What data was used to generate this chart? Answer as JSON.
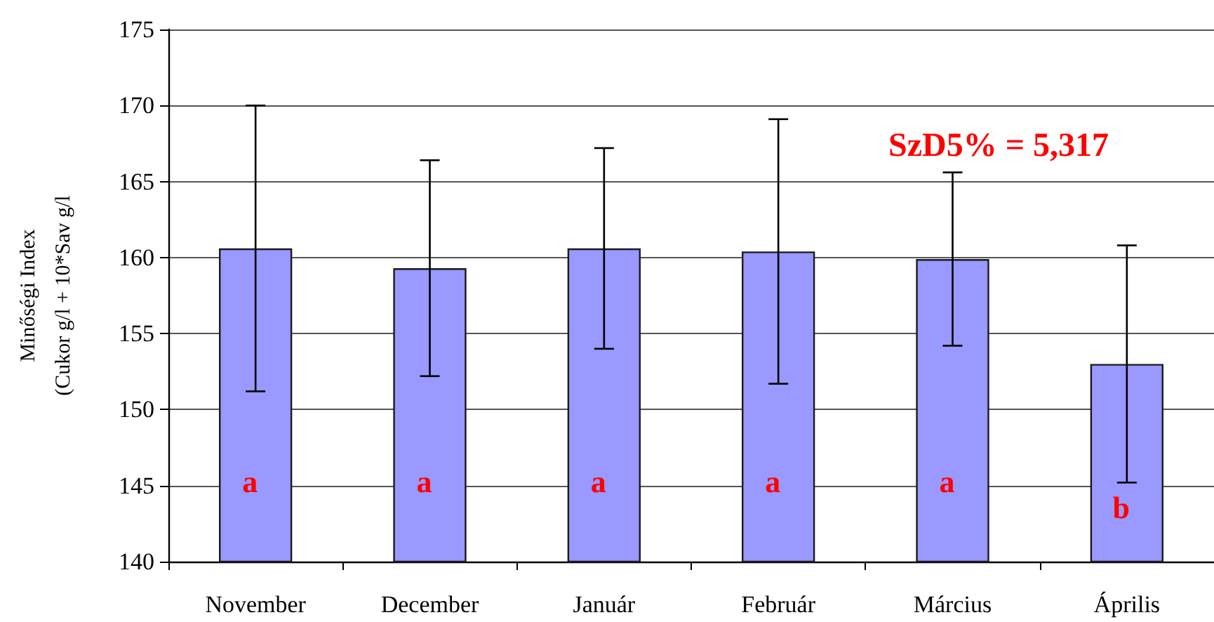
{
  "chart_data": {
    "type": "bar",
    "ylabel": "Minőségi Index\n(Cukor g/l + 10*Sav g/l",
    "categories": [
      "November",
      "December",
      "Január",
      "Február",
      "Március",
      "Április"
    ],
    "values": [
      160.6,
      159.3,
      160.6,
      160.4,
      159.9,
      153.0
    ],
    "errors": [
      9.4,
      7.1,
      6.6,
      8.7,
      5.7,
      7.8
    ],
    "color": "#9999ff",
    "ylim": [
      140,
      175
    ],
    "yticks": [
      140,
      145,
      150,
      155,
      160,
      165,
      170,
      175
    ],
    "grid": "y",
    "annotations": [
      "a",
      "a",
      "a",
      "a",
      "a",
      "b",
      "SzD5% = 5,317"
    ]
  }
}
